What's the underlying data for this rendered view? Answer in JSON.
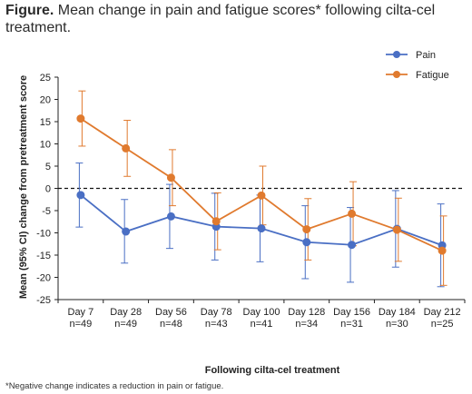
{
  "title": {
    "prefix": "Figure.",
    "text": " Mean change in pain and fatigue scores* following cilta-cel treatment."
  },
  "footnote": "*Negative change indicates a reduction in pain or fatigue.",
  "chart_data": {
    "type": "line",
    "categories": [
      {
        "day": "Day 7",
        "n": "n=49"
      },
      {
        "day": "Day 28",
        "n": "n=49"
      },
      {
        "day": "Day 56",
        "n": "n=48"
      },
      {
        "day": "Day 78",
        "n": "n=43"
      },
      {
        "day": "Day 100",
        "n": "n=41"
      },
      {
        "day": "Day 128",
        "n": "n=34"
      },
      {
        "day": "Day 156",
        "n": "n=31"
      },
      {
        "day": "Day 184",
        "n": "n=30"
      },
      {
        "day": "Day 212",
        "n": "n=25"
      }
    ],
    "series": [
      {
        "name": "Pain",
        "color": "#4a6fc4",
        "values": [
          -1.5,
          -9.7,
          -6.3,
          -8.6,
          -9.0,
          -12.1,
          -12.7,
          -9.1,
          -12.8
        ],
        "ci_low": [
          -8.7,
          -16.8,
          -13.5,
          -16.1,
          -16.5,
          -20.3,
          -21.1,
          -17.7,
          -22.1
        ],
        "ci_high": [
          5.7,
          -2.5,
          0.9,
          -1.1,
          -1.5,
          -3.9,
          -4.3,
          -0.5,
          -3.5
        ]
      },
      {
        "name": "Fatigue",
        "color": "#e07a2e",
        "values": [
          15.7,
          9.0,
          2.4,
          -7.4,
          -1.6,
          -9.2,
          -5.7,
          -9.3,
          -14.0
        ],
        "ci_low": [
          9.5,
          2.7,
          -3.9,
          -13.8,
          -8.2,
          -16.1,
          -12.9,
          -16.4,
          -21.8
        ],
        "ci_high": [
          21.9,
          15.3,
          8.7,
          -1.0,
          5.0,
          -2.3,
          1.5,
          -2.2,
          -6.2
        ]
      }
    ],
    "xlabel": "Following cilta-cel treatment",
    "ylabel": "Mean (95% CI) change from pretreatment score",
    "ylim": [
      -25,
      25
    ],
    "yticks": [
      25,
      20,
      15,
      10,
      5,
      0,
      -5,
      -10,
      -15,
      -20,
      -25
    ],
    "reference_line": 0,
    "legend_position": "top-right",
    "grid": false
  }
}
